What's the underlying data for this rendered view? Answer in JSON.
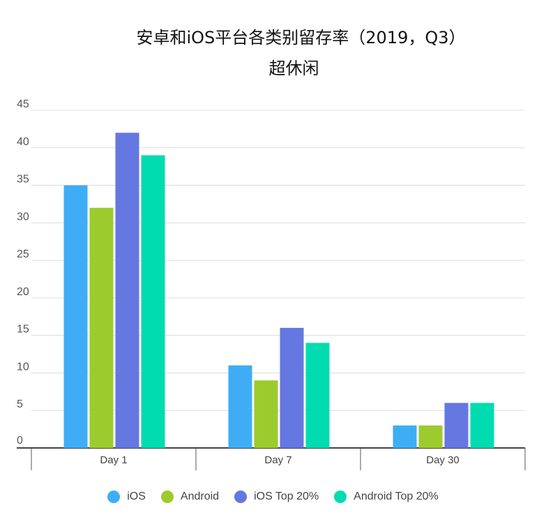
{
  "chart_data": {
    "type": "bar",
    "title": "安卓和iOS平台各类别留存率（2019，Q3）",
    "subtitle": "超休闲",
    "categories": [
      "Day 1",
      "Day 7",
      "Day 30"
    ],
    "ylim": [
      0,
      45
    ],
    "yticks": [
      0,
      5,
      10,
      15,
      20,
      25,
      30,
      35,
      40,
      45
    ],
    "grid": true,
    "legend_position": "bottom",
    "series": [
      {
        "name": "iOS",
        "color": "#3eadf5",
        "values": [
          35,
          11,
          3
        ]
      },
      {
        "name": "Android",
        "color": "#9ccb2d",
        "values": [
          32,
          9,
          3
        ]
      },
      {
        "name": "iOS Top 20%",
        "color": "#6577e0",
        "values": [
          42,
          16,
          6
        ]
      },
      {
        "name": "Android Top 20%",
        "color": "#00dcb0",
        "values": [
          39,
          14,
          6
        ]
      }
    ]
  }
}
